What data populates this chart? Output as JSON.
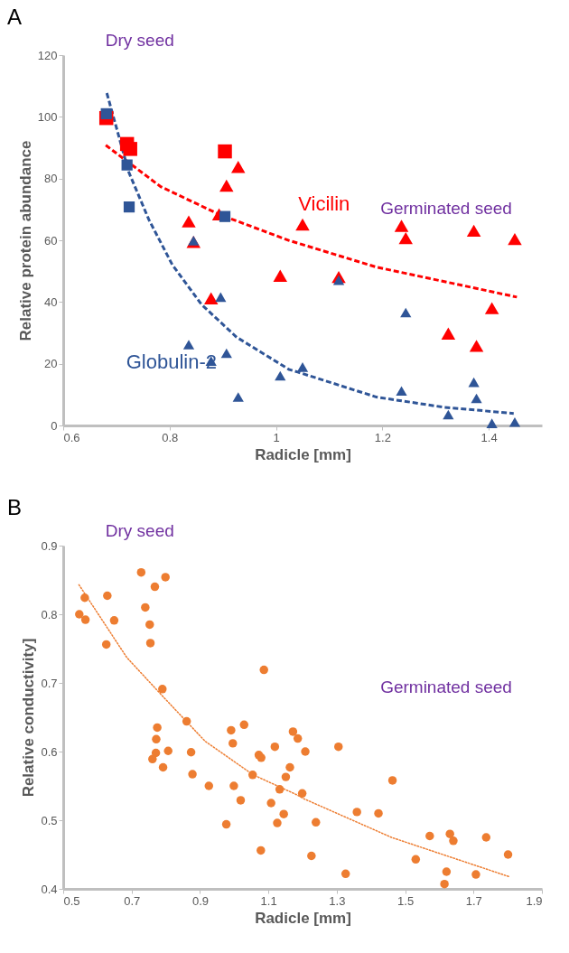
{
  "chart_data": [
    {
      "type": "scatter",
      "title": "A",
      "xlabel": "Radicle [mm]",
      "ylabel": "Relative protein abundance",
      "xlim": [
        0.6,
        1.5
      ],
      "xticks": [
        0.6,
        0.8,
        1,
        1.2,
        1.4
      ],
      "ylim": [
        0,
        120
      ],
      "yticks": [
        0,
        20,
        40,
        60,
        80,
        100,
        120
      ],
      "series": [
        {
          "type": "scatter",
          "marker": "square",
          "color": "#ff0000",
          "x": [
            0.681,
            0.72,
            0.726,
            0.904
          ],
          "values": [
            99.6,
            91.2,
            89.6,
            88.8
          ]
        },
        {
          "type": "scatter",
          "marker": "triangle",
          "color": "#ff0000",
          "x": [
            0.893,
            0.836,
            0.845,
            0.907,
            0.929,
            0.878,
            1.008,
            1.05,
            1.118,
            1.236,
            1.244,
            1.372,
            1.449,
            1.406,
            1.324,
            1.377
          ],
          "values": [
            68.4,
            66.1,
            59.5,
            77.7,
            83.8,
            41.2,
            48.5,
            65.1,
            48.1,
            64.7,
            60.7,
            63.1,
            60.4,
            38,
            29.8,
            25.8
          ]
        },
        {
          "type": "scatter",
          "marker": "square",
          "color": "#2f5597",
          "x": [
            0.681,
            0.72,
            0.724,
            0.904
          ],
          "values": [
            101,
            84.4,
            70.8,
            67.7
          ]
        },
        {
          "type": "scatter",
          "marker": "triangle",
          "color": "#2f5597",
          "x": [
            0.845,
            0.896,
            0.836,
            0.878,
            0.907,
            0.929,
            1.008,
            1.05,
            1.118,
            1.244,
            1.236,
            1.324,
            1.372,
            1.377,
            1.406,
            1.449
          ],
          "values": [
            59.9,
            41.6,
            26.2,
            20.9,
            23.4,
            9.2,
            16.1,
            18.9,
            47.1,
            36.6,
            11.2,
            3.5,
            14,
            8.8,
            0.7,
            1.1
          ]
        },
        {
          "type": "line",
          "name": "Vicilin",
          "marker": "none",
          "line_style": "dashed",
          "color": "#ff0000",
          "x": [
            0.68,
            0.783,
            0.893,
            1.025,
            1.189,
            1.453
          ],
          "values": [
            90.8,
            77.4,
            68.4,
            59.9,
            51.3,
            41.6
          ]
        },
        {
          "type": "line",
          "name": "Globulin-2",
          "marker": "none",
          "line_style": "dashed",
          "color": "#2f5597",
          "x": [
            0.682,
            0.723,
            0.761,
            0.805,
            0.86,
            0.926,
            1.025,
            1.041,
            1.189,
            1.316,
            1.447
          ],
          "values": [
            107.7,
            82.2,
            66.7,
            52.1,
            39.2,
            28.6,
            18.1,
            17.3,
            9.2,
            5.9,
            3.9
          ]
        }
      ],
      "annotations": [
        "Dry seed",
        "Germinated seed"
      ]
    },
    {
      "type": "scatter",
      "title": "B",
      "xlabel": "Radicle [mm]",
      "ylabel": "Relative conductivity]",
      "xlim": [
        0.5,
        1.9
      ],
      "xticks": [
        0.5,
        0.7,
        0.9,
        1.1,
        1.3,
        1.5,
        1.7,
        1.9
      ],
      "ylim": [
        0.4,
        0.9
      ],
      "yticks": [
        0.4,
        0.5,
        0.6,
        0.7,
        0.8,
        0.9
      ],
      "series": [
        {
          "type": "scatter",
          "marker": "circle",
          "color": "#ed7d31",
          "x": [
            0.547,
            0.563,
            0.565,
            0.629,
            0.649,
            0.626,
            0.728,
            0.768,
            0.799,
            0.74,
            0.753,
            0.755,
            0.79,
            0.775,
            0.772,
            0.771,
            0.761,
            0.792,
            0.807,
            0.861,
            0.874,
            0.878,
            0.926,
            0.977,
            0.991,
            0.996,
            0.999,
            1.029,
            1.019,
            1.054,
            1.072,
            1.079,
            1.087,
            1.078,
            1.119,
            1.108,
            1.126,
            1.133,
            1.145,
            1.151,
            1.163,
            1.172,
            1.186,
            1.208,
            1.199,
            1.305,
            1.463,
            1.239,
            1.359,
            1.422,
            1.226,
            1.326,
            1.531,
            1.572,
            1.631,
            1.641,
            1.737,
            1.801,
            1.621,
            1.615,
            1.707
          ],
          "values": [
            0.8,
            0.824,
            0.792,
            0.827,
            0.791,
            0.756,
            0.861,
            0.84,
            0.854,
            0.81,
            0.785,
            0.758,
            0.691,
            0.635,
            0.618,
            0.598,
            0.589,
            0.577,
            0.601,
            0.644,
            0.599,
            0.567,
            0.55,
            0.494,
            0.631,
            0.612,
            0.55,
            0.639,
            0.529,
            0.566,
            0.595,
            0.591,
            0.719,
            0.456,
            0.607,
            0.525,
            0.496,
            0.545,
            0.509,
            0.563,
            0.577,
            0.629,
            0.619,
            0.6,
            0.539,
            0.607,
            0.558,
            0.497,
            0.512,
            0.51,
            0.448,
            0.422,
            0.443,
            0.477,
            0.48,
            0.47,
            0.475,
            0.45,
            0.425,
            0.407,
            0.421
          ]
        },
        {
          "type": "line",
          "marker": "none",
          "line_style": "dotted",
          "color": "#ed7d31",
          "x": [
            0.546,
            0.686,
            0.792,
            0.915,
            1.056,
            1.179,
            1.205,
            1.46,
            1.803
          ],
          "values": [
            0.843,
            0.737,
            0.68,
            0.615,
            0.566,
            0.538,
            0.531,
            0.475,
            0.418
          ]
        }
      ],
      "annotations": [
        "Dry seed",
        "Germinated seed"
      ]
    }
  ]
}
